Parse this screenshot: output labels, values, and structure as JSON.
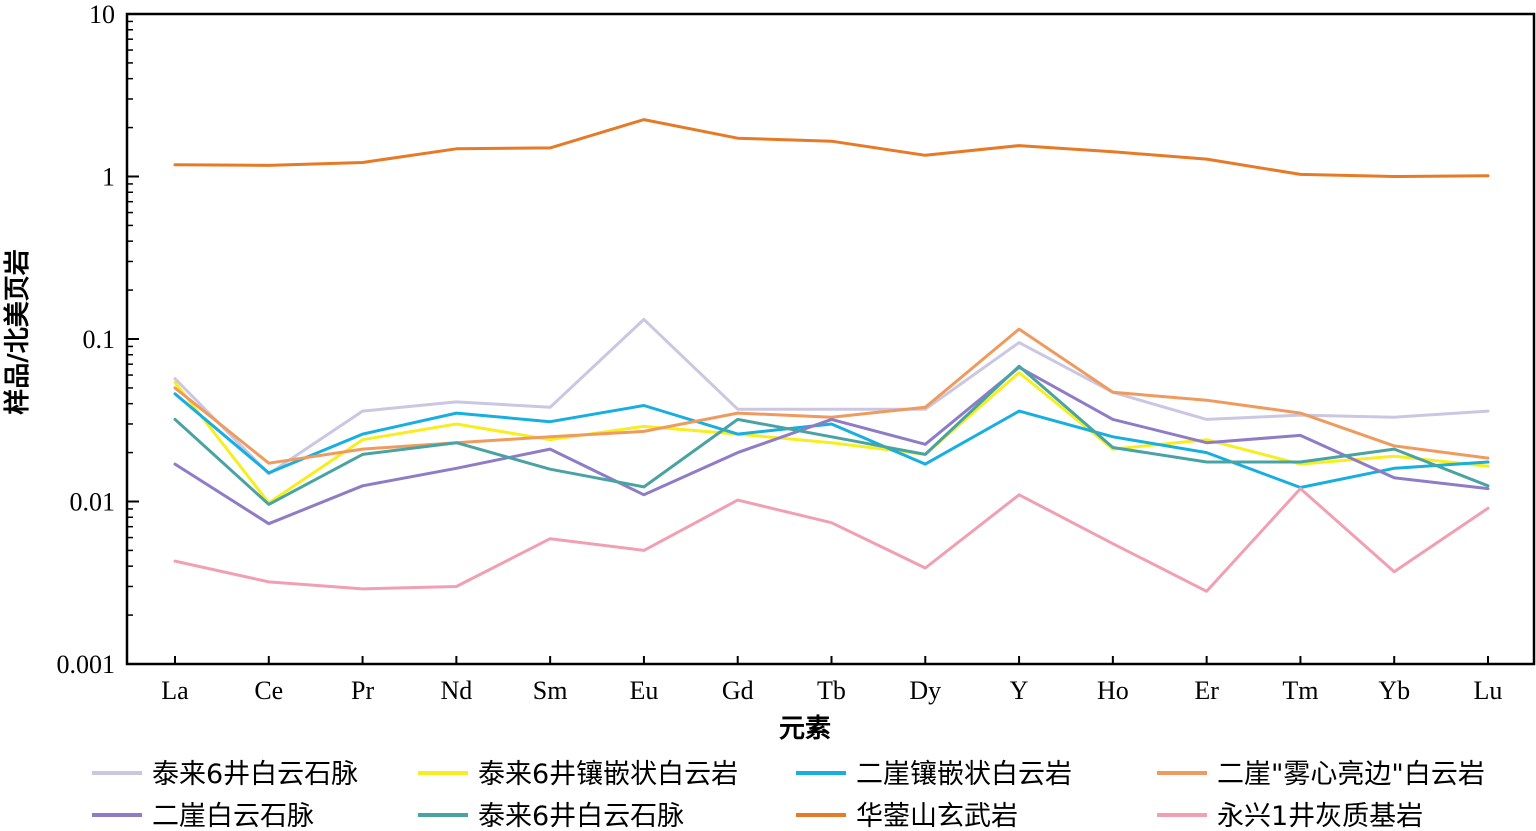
{
  "chart_data": {
    "type": "line",
    "y_scale": "log",
    "ylim": [
      0.001,
      10
    ],
    "yticks": [
      {
        "value": 10,
        "label": "10"
      },
      {
        "value": 1,
        "label": "1"
      },
      {
        "value": 0.1,
        "label": "0.1"
      },
      {
        "value": 0.01,
        "label": "0.01"
      },
      {
        "value": 0.001,
        "label": "0.001"
      }
    ],
    "xlabel": "元素",
    "ylabel": "样品/北美页岩",
    "categories": [
      "La",
      "Ce",
      "Pr",
      "Nd",
      "Sm",
      "Eu",
      "Gd",
      "Tb",
      "Dy",
      "Y",
      "Ho",
      "Er",
      "Tm",
      "Yb",
      "Lu"
    ],
    "series": [
      {
        "name": "泰来6井白云石脉",
        "color": "#cbc6e2",
        "values": [
          0.057,
          0.0148,
          0.036,
          0.041,
          0.038,
          0.132,
          0.037,
          0.037,
          0.037,
          0.095,
          0.047,
          0.032,
          0.034,
          0.033,
          0.036
        ]
      },
      {
        "name": "泰来6井镶嵌状白云岩",
        "color": "#f6ee1f",
        "values": [
          0.054,
          0.0098,
          0.024,
          0.03,
          0.024,
          0.029,
          0.026,
          0.023,
          0.0195,
          0.062,
          0.021,
          0.024,
          0.017,
          0.019,
          0.0165
        ]
      },
      {
        "name": "二崖镶嵌状白云岩",
        "color": "#17aee0",
        "values": [
          0.046,
          0.015,
          0.026,
          0.035,
          0.031,
          0.039,
          0.026,
          0.03,
          0.017,
          0.036,
          0.025,
          0.02,
          0.0122,
          0.016,
          0.0175
        ]
      },
      {
        "name": "二崖\"雾心亮边\"白云岩",
        "color": "#ef9a5e",
        "values": [
          0.05,
          0.0172,
          0.021,
          0.023,
          0.025,
          0.027,
          0.035,
          0.033,
          0.038,
          0.115,
          0.047,
          0.042,
          0.035,
          0.022,
          0.0185
        ]
      },
      {
        "name": "二崖白云石脉",
        "color": "#8f7cc6",
        "values": [
          0.017,
          0.0073,
          0.0125,
          0.016,
          0.021,
          0.011,
          0.02,
          0.032,
          0.0225,
          0.067,
          0.032,
          0.023,
          0.0255,
          0.014,
          0.012
        ]
      },
      {
        "name": "泰来6井白云石脉",
        "color": "#4aa3a3",
        "values": [
          0.032,
          0.0096,
          0.0195,
          0.023,
          0.0158,
          0.0123,
          0.032,
          0.025,
          0.0195,
          0.068,
          0.0215,
          0.0175,
          0.0175,
          0.021,
          0.0125
        ]
      },
      {
        "name": "华蓥山玄武岩",
        "color": "#e67a27",
        "values": [
          1.18,
          1.17,
          1.22,
          1.48,
          1.5,
          2.24,
          1.72,
          1.65,
          1.35,
          1.55,
          1.42,
          1.28,
          1.03,
          1.0,
          1.01
        ]
      },
      {
        "name": "永兴1井灰质基岩",
        "color": "#f0a0b2",
        "values": [
          0.0043,
          0.0032,
          0.0029,
          0.003,
          0.0059,
          0.005,
          0.0102,
          0.0074,
          0.0039,
          0.011,
          0.0055,
          0.0028,
          0.012,
          0.0037,
          0.0091
        ]
      }
    ],
    "legend_position": "bottom",
    "grid": false
  }
}
